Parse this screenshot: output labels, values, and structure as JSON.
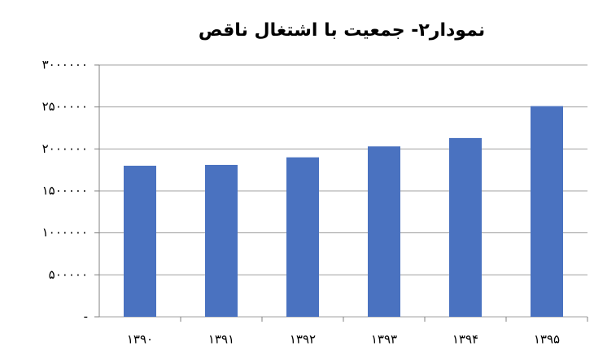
{
  "chart_data": {
    "type": "bar",
    "title": "نمودار۲- جمعیت با اشتغال  ناقص",
    "categories": [
      "۱۳۹۰",
      "۱۳۹۱",
      "۱۳۹۲",
      "۱۳۹۳",
      "۱۳۹۴",
      "۱۳۹۵"
    ],
    "values": [
      1800000,
      1810000,
      1900000,
      2030000,
      2130000,
      2510000
    ],
    "color": "#4a72c0",
    "ylim": [
      0,
      3000000
    ],
    "yticks": [
      {
        "value": 0,
        "label": "-"
      },
      {
        "value": 500000,
        "label": "۵۰۰۰۰۰"
      },
      {
        "value": 1000000,
        "label": "۱۰۰۰۰۰۰"
      },
      {
        "value": 1500000,
        "label": "۱۵۰۰۰۰۰"
      },
      {
        "value": 2000000,
        "label": "۲۰۰۰۰۰۰"
      },
      {
        "value": 2500000,
        "label": "۲۵۰۰۰۰۰"
      },
      {
        "value": 3000000,
        "label": "۳۰۰۰۰۰۰"
      }
    ],
    "grid": true
  }
}
